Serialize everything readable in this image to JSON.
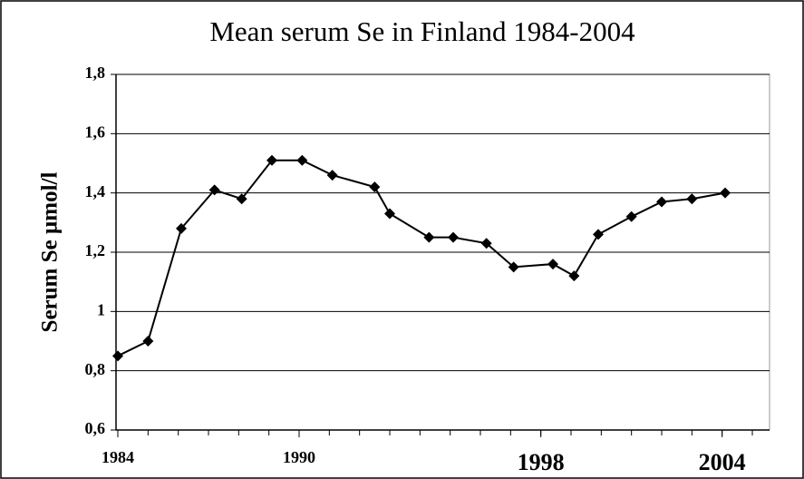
{
  "chart_data": {
    "type": "line",
    "title": "Mean serum Se in Finland  1984-2004",
    "y_label": "Serum Se µmol/l",
    "x": [
      1984,
      1985,
      1986.1,
      1987.2,
      1988.1,
      1989.1,
      1990.1,
      1991.1,
      1992.5,
      1993.0,
      1994.3,
      1995.1,
      1996.2,
      1997.1,
      1998.4,
      1999.1,
      1999.9,
      2001.0,
      2002.0,
      2003.0,
      2004.1
    ],
    "series": [
      {
        "name": "Serum Se",
        "color": "#000000",
        "values": [
          0.85,
          0.9,
          1.28,
          1.41,
          1.38,
          1.51,
          1.51,
          1.46,
          1.42,
          1.33,
          1.25,
          1.25,
          1.23,
          1.15,
          1.16,
          1.12,
          1.26,
          1.32,
          1.37,
          1.38,
          1.4
        ]
      }
    ],
    "xlim": [
      1984,
      2005.6
    ],
    "xticks": [
      1984,
      1990,
      1998,
      2004
    ],
    "xminorticks": [
      1984,
      1985,
      1986,
      1987,
      1988,
      1989,
      1990,
      1991,
      1992,
      1993,
      1994,
      1995,
      1996,
      1997,
      1998,
      1999,
      2000,
      2001,
      2002,
      2003,
      2004,
      2005
    ],
    "ylim": [
      0.6,
      1.8
    ],
    "yticks": [
      {
        "value": 0.6,
        "label": "0,6"
      },
      {
        "value": 0.8,
        "label": "0,8"
      },
      1,
      {
        "value": 1.2,
        "label": "1,2"
      },
      {
        "value": 1.4,
        "label": "1,4"
      },
      {
        "value": 1.6,
        "label": "1,6"
      },
      {
        "value": 1.8,
        "label": "1,8"
      }
    ],
    "grid": true
  }
}
